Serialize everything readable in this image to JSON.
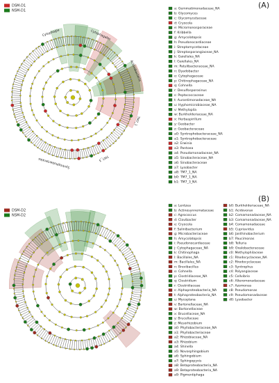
{
  "panels": [
    {
      "letter": "(A)",
      "groups": [
        {
          "name": "DSM-D1",
          "color": "#c62828"
        },
        {
          "name": "NSM-D1",
          "color": "#1b7a1b"
        }
      ],
      "legend": [
        {
          "label": "a: Gemmatimonadaceae_NA",
          "color": "#1b7a1b"
        },
        {
          "label": "b: Glycomyces",
          "color": "#1b7a1b"
        },
        {
          "label": "c: Glycomycetaceae",
          "color": "#1b7a1b"
        },
        {
          "label": "d: Cryocola",
          "color": "#c62828"
        },
        {
          "label": "e: Micromonosporaceae",
          "color": "#1b7a1b"
        },
        {
          "label": "f: Kribbella",
          "color": "#1b7a1b"
        },
        {
          "label": "g: Amycolatopsis",
          "color": "#1b7a1b"
        },
        {
          "label": "h: Pseudonocardiaceae",
          "color": "#1b7a1b"
        },
        {
          "label": "i: Streptomycetaceae",
          "color": "#1b7a1b"
        },
        {
          "label": "j: Streptosporangiaceae_NA",
          "color": "#1b7a1b"
        },
        {
          "label": "k: Gaiellales_NA",
          "color": "#1b7a1b"
        },
        {
          "label": "l: Gaiellales_NA",
          "color": "#1b7a1b"
        },
        {
          "label": "m: Patulibacteraceae_NA",
          "color": "#1b7a1b"
        },
        {
          "label": "n: Dyadobacter",
          "color": "#1b7a1b"
        },
        {
          "label": "o: Cytophagaceae",
          "color": "#1b7a1b"
        },
        {
          "label": "p: Chitinophagaceae_NA",
          "color": "#1b7a1b"
        },
        {
          "label": "q: Cohnella",
          "color": "#c62828"
        },
        {
          "label": "r: Desulfosporosinus",
          "color": "#1b7a1b"
        },
        {
          "label": "s: Peptococcaceae",
          "color": "#1b7a1b"
        },
        {
          "label": "t: Aurantimonadaceae_NA",
          "color": "#1b7a1b"
        },
        {
          "label": "u: Hyphomicrobiaceae_NA",
          "color": "#1b7a1b"
        },
        {
          "label": "v: Methylopila",
          "color": "#1b7a1b"
        },
        {
          "label": "w: Burkholderiaceae_NA",
          "color": "#1b7a1b"
        },
        {
          "label": "x: Herbaspirillum",
          "color": "#c62828"
        },
        {
          "label": "y: Geobacter",
          "color": "#1b7a1b"
        },
        {
          "label": "z: Geobacteraceae",
          "color": "#1b7a1b"
        },
        {
          "label": "a0: Syntrophobacteraceae_NA",
          "color": "#1b7a1b"
        },
        {
          "label": "a1: Syntrophobacteraceae",
          "color": "#1b7a1b"
        },
        {
          "label": "a2: Erwinia",
          "color": "#c62828"
        },
        {
          "label": "a3: Pantoea",
          "color": "#c62828"
        },
        {
          "label": "a4: Pseudomonadaceae_NA",
          "color": "#1b7a1b"
        },
        {
          "label": "a5: Sinobacteraceae_NA",
          "color": "#1b7a1b"
        },
        {
          "label": "a6: Sinobacteraceae",
          "color": "#1b7a1b"
        },
        {
          "label": "a7: Lysobacter",
          "color": "#1b7a1b"
        },
        {
          "label": "a8: TM7_1_NA",
          "color": "#1b7a1b"
        },
        {
          "label": "b0: TM7_1_NA",
          "color": "#1b7a1b"
        },
        {
          "label": "b1: TM7_3_NA",
          "color": "#1b7a1b"
        }
      ],
      "clade_labels": [
        "Cytophagia",
        "Cytophagales",
        "Actinobacteria",
        "TM7_1",
        "TM7_3",
        "Syntrophobacterales"
      ]
    },
    {
      "letter": "(B)",
      "groups": [
        {
          "name": "DSM-D2",
          "color": "#9e2a1f"
        },
        {
          "name": "NSM-D2",
          "color": "#1b7a1b"
        }
      ],
      "legend": [
        {
          "label": "a: Lentzea",
          "color": "#1b7a1b"
        },
        {
          "label": "b: Actinosynnemataceae",
          "color": "#1b7a1b"
        },
        {
          "label": "c: Agrococcus",
          "color": "#9e2a1f"
        },
        {
          "label": "d: Clavibacter",
          "color": "#9e2a1f"
        },
        {
          "label": "e: Cryocola",
          "color": "#9e2a1f"
        },
        {
          "label": "f: Salinibacterium",
          "color": "#9e2a1f"
        },
        {
          "label": "g: Microbacteriaceae",
          "color": "#9e2a1f"
        },
        {
          "label": "h: Amycolatopsis",
          "color": "#1b7a1b"
        },
        {
          "label": "i: Pseudonocardiaceae",
          "color": "#1b7a1b"
        },
        {
          "label": "j: Cytophagaceae_NA",
          "color": "#1b7a1b"
        },
        {
          "label": "k: Chitinophaga",
          "color": "#1b7a1b"
        },
        {
          "label": "l: Bacillales_NA",
          "color": "#9e2a1f"
        },
        {
          "label": "m: Bacillales_NA",
          "color": "#9e2a1f"
        },
        {
          "label": "n: Brevibacillus",
          "color": "#9e2a1f"
        },
        {
          "label": "o: Cohnella",
          "color": "#9e2a1f"
        },
        {
          "label": "p: Clostridiaceae_NA",
          "color": "#1b7a1b"
        },
        {
          "label": "q: Clostridium",
          "color": "#1b7a1b"
        },
        {
          "label": "r: Clostridiaceae",
          "color": "#1b7a1b"
        },
        {
          "label": "s: Alphaproteobacteria_NA",
          "color": "#9e2a1f"
        },
        {
          "label": "t: Alphaproteobacteria_NA",
          "color": "#9e2a1f"
        },
        {
          "label": "u: Mycoplana",
          "color": "#1b7a1b"
        },
        {
          "label": "v: Bartonellaceae_NA",
          "color": "#9e2a1f"
        },
        {
          "label": "w: Bartonellaceae",
          "color": "#9e2a1f"
        },
        {
          "label": "x: Brucellaceae_NA",
          "color": "#1b7a1b"
        },
        {
          "label": "y: Brucellaceae",
          "color": "#1b7a1b"
        },
        {
          "label": "z: Mesorhizobium",
          "color": "#1b7a1b"
        },
        {
          "label": "a0: Phyllobacteriaceae_NA",
          "color": "#1b7a1b"
        },
        {
          "label": "a1: Phyllobacteriaceae",
          "color": "#1b7a1b"
        },
        {
          "label": "a2: Rhizobiaceae_NA",
          "color": "#9e2a1f"
        },
        {
          "label": "a3: Rhizobium",
          "color": "#9e2a1f"
        },
        {
          "label": "a4: Shinella",
          "color": "#1b7a1b"
        },
        {
          "label": "a5: Novosphingobium",
          "color": "#1b7a1b"
        },
        {
          "label": "a6: Sphingobium",
          "color": "#1b7a1b"
        },
        {
          "label": "a7: Sphingopyxis",
          "color": "#1b7a1b"
        },
        {
          "label": "a8: Betaproteobacteria_NA",
          "color": "#9e2a1f"
        },
        {
          "label": "a9: Betaproteobacteria_NA",
          "color": "#9e2a1f"
        },
        {
          "label": "a9: Pigmentiphaga",
          "color": "#9e2a1f"
        },
        {
          "label": "b0: Burkholderiaceae_NA",
          "color": "#9e2a1f"
        },
        {
          "label": "b1: Acidovorax",
          "color": "#1b7a1b"
        },
        {
          "label": "b2: Comamonadaceae_NA",
          "color": "#1b7a1b"
        },
        {
          "label": "b3: Comamonadaceae_NA",
          "color": "#1b7a1b"
        },
        {
          "label": "b4: Comamonadaceae",
          "color": "#1b7a1b"
        },
        {
          "label": "b5: Cupriavidus",
          "color": "#9e2a1f"
        },
        {
          "label": "b6: Janthinobacterium",
          "color": "#1b7a1b"
        },
        {
          "label": "b7: Paucimonas",
          "color": "#1b7a1b"
        },
        {
          "label": "b8: Telluria",
          "color": "#1b7a1b"
        },
        {
          "label": "b9: Oxalobacteraceae",
          "color": "#1b7a1b"
        },
        {
          "label": "c0: Methylophilaceae",
          "color": "#1b7a1b"
        },
        {
          "label": "c1: Rhodocyclaceae_NA",
          "color": "#1b7a1b"
        },
        {
          "label": "c2: Rhodocyclaceae",
          "color": "#1b7a1b"
        },
        {
          "label": "c3: Syntrophus",
          "color": "#1b7a1b"
        },
        {
          "label": "c4: Polyangiaceae",
          "color": "#1b7a1b"
        },
        {
          "label": "c5: Cellvibrio",
          "color": "#1b7a1b"
        },
        {
          "label": "c6: Alteromonadaceae",
          "color": "#1b7a1b"
        },
        {
          "label": "c7: Azomonas",
          "color": "#9e2a1f"
        },
        {
          "label": "c8: Pseudomonas",
          "color": "#1b7a1b"
        },
        {
          "label": "c9: Pseudomonadaceae",
          "color": "#1b7a1b"
        },
        {
          "label": "d0: Lysobacter",
          "color": "#1b7a1b"
        }
      ],
      "clade_labels": []
    }
  ]
}
